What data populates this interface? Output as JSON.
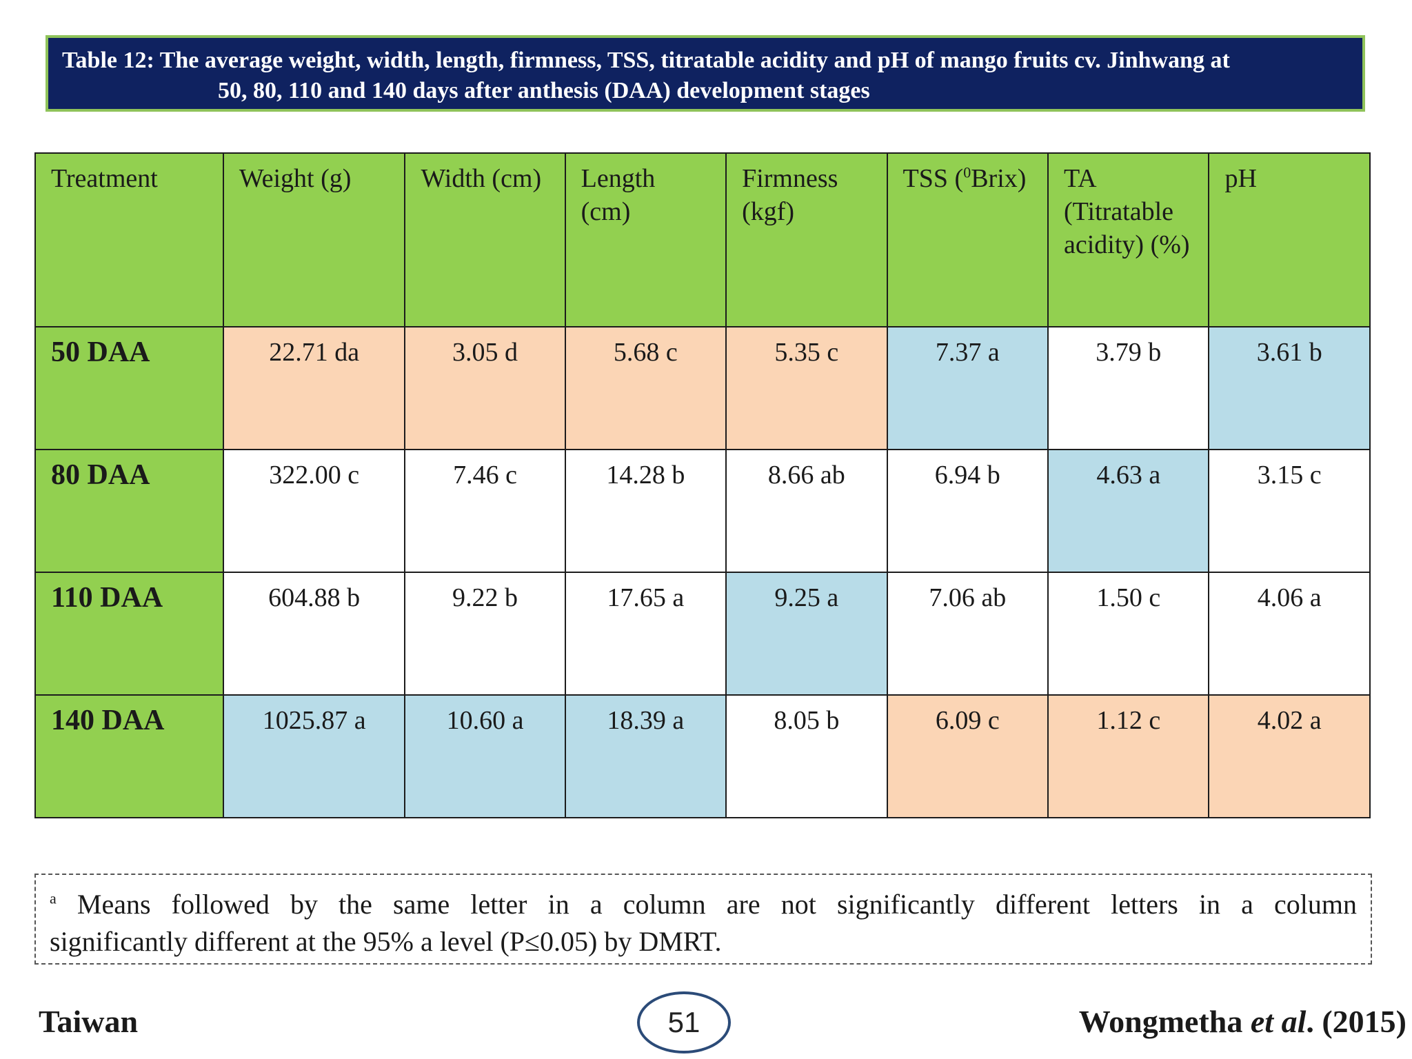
{
  "title": {
    "line1": "Table 12: The average weight, width, length, firmness,  TSS,  titratable acidity and pH of mango fruits cv. Jinhwang at",
    "line2": "50, 80, 110 and 140 days after anthesis (DAA) development stages"
  },
  "table": {
    "headers": [
      "Treatment",
      "Weight (g)",
      "Width (cm)",
      "Length (cm)",
      "Firmness (kgf)",
      "TSS (",
      "0",
      "Brix)",
      "TA (Titratable acidity) (%)",
      "pH"
    ],
    "header_labels": {
      "treatment": "Treatment",
      "weight": "Weight (g)",
      "width": "Width (cm)",
      "length": "Length (cm)",
      "firmness": "Firmness (kgf)",
      "tss_prefix": "TSS (",
      "tss_sup": "0",
      "tss_suffix": "Brix)",
      "ta": "TA (Titratable acidity) (%)",
      "ph": "pH"
    },
    "rows": [
      {
        "label": "50 DAA",
        "cells": [
          "22.71 da",
          "3.05 d",
          "5.68 c",
          "5.35 c",
          "7.37 a",
          "3.79 b",
          "3.61 b"
        ]
      },
      {
        "label": "80 DAA",
        "cells": [
          "322.00 c",
          "7.46 c",
          "14.28 b",
          "8.66 ab",
          "6.94 b",
          "4.63 a",
          "3.15 c"
        ]
      },
      {
        "label": "110 DAA",
        "cells": [
          "604.88 b",
          "9.22 b",
          "17.65 a",
          "9.25 a",
          "7.06 ab",
          "1.50 c",
          "4.06 a"
        ]
      },
      {
        "label": "140 DAA",
        "cells": [
          "1025.87 a",
          "10.60 a",
          "18.39 a",
          "8.05 b",
          "6.09 c",
          "1.12 c",
          "4.02 a"
        ]
      }
    ],
    "colors": {
      "header": "#92d050",
      "highlight_max": "#b8dce8",
      "highlight_min": "#fbd5b5",
      "plain": "#ffffff"
    }
  },
  "footnote": {
    "marker": "a",
    "line1": "Means followed by the same letter in a column are not significantly different letters in a column",
    "line2": "significantly different at the 95% a level (P≤0.05) by DMRT."
  },
  "footer": {
    "left": "Taiwan",
    "page_number": "51",
    "citation_author": "Wongmetha ",
    "citation_etal": "et al",
    "citation_year": ". (2015)"
  }
}
